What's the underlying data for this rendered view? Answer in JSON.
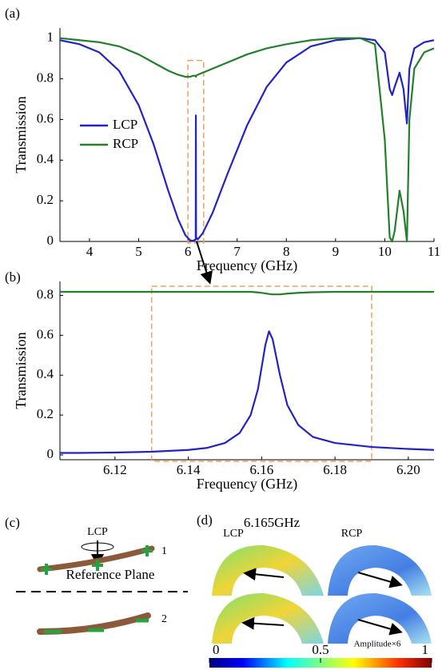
{
  "chart_data": [
    {
      "type": "line",
      "panel_label": "(a)",
      "xlabel": "Frequency (GHz)",
      "ylabel": "Transmission",
      "x": [
        3.4,
        3.8,
        4.2,
        4.6,
        5.0,
        5.3,
        5.6,
        5.8,
        5.95,
        6.05,
        6.1,
        6.158,
        6.162,
        6.166,
        6.2,
        6.3,
        6.5,
        6.8,
        7.2,
        7.6,
        8.0,
        8.5,
        9.0,
        9.5,
        9.8,
        10.0,
        10.1,
        10.15,
        10.2,
        10.3,
        10.38,
        10.45,
        10.5,
        10.6,
        10.8,
        11.0
      ],
      "series": [
        {
          "name": "LCP",
          "color": "#2323c4",
          "values": [
            0.99,
            0.97,
            0.93,
            0.84,
            0.67,
            0.48,
            0.25,
            0.11,
            0.03,
            0.005,
            0.003,
            0.01,
            0.62,
            0.02,
            0.01,
            0.04,
            0.14,
            0.33,
            0.57,
            0.76,
            0.88,
            0.96,
            0.99,
            1.0,
            0.99,
            0.93,
            0.75,
            0.72,
            0.76,
            0.83,
            0.75,
            0.58,
            0.85,
            0.95,
            0.98,
            0.99
          ]
        },
        {
          "name": "RCP",
          "color": "#22802a",
          "values": [
            1.0,
            0.99,
            0.98,
            0.96,
            0.92,
            0.88,
            0.84,
            0.82,
            0.81,
            0.81,
            0.815,
            0.815,
            0.81,
            0.815,
            0.82,
            0.83,
            0.85,
            0.88,
            0.92,
            0.95,
            0.97,
            0.99,
            1.0,
            1.0,
            0.97,
            0.5,
            0.02,
            0.0,
            0.05,
            0.25,
            0.15,
            0.0,
            0.6,
            0.85,
            0.93,
            0.95
          ]
        }
      ],
      "xlim": [
        3.4,
        11
      ],
      "ylim": [
        0,
        1.05
      ],
      "xticks": [
        4,
        5,
        6,
        7,
        8,
        9,
        10,
        11
      ],
      "yticks": [
        0,
        0.2,
        0.4,
        0.6,
        0.8,
        1
      ],
      "legend": "left",
      "highlight_x": [
        6.0,
        6.32
      ],
      "highlight_color": "#f0a060"
    },
    {
      "type": "line",
      "panel_label": "(b)",
      "xlabel": "Frequency (GHz)",
      "ylabel": "Transmission",
      "x": [
        6.105,
        6.11,
        6.12,
        6.13,
        6.14,
        6.145,
        6.15,
        6.154,
        6.157,
        6.159,
        6.161,
        6.162,
        6.163,
        6.165,
        6.167,
        6.17,
        6.174,
        6.18,
        6.19,
        6.2,
        6.207
      ],
      "series": [
        {
          "name": "LCP",
          "color": "#2323c4",
          "values": [
            0.01,
            0.01,
            0.012,
            0.016,
            0.025,
            0.035,
            0.06,
            0.11,
            0.2,
            0.33,
            0.55,
            0.62,
            0.58,
            0.4,
            0.25,
            0.15,
            0.09,
            0.06,
            0.04,
            0.03,
            0.025
          ]
        },
        {
          "name": "RCP",
          "color": "#22802a",
          "values": [
            0.818,
            0.818,
            0.818,
            0.818,
            0.818,
            0.818,
            0.818,
            0.818,
            0.818,
            0.815,
            0.81,
            0.807,
            0.805,
            0.805,
            0.809,
            0.813,
            0.816,
            0.818,
            0.818,
            0.818,
            0.818
          ]
        }
      ],
      "xlim": [
        6.105,
        6.207
      ],
      "ylim": [
        -0.024,
        0.87
      ],
      "xticks": [
        6.12,
        6.14,
        6.16,
        6.18,
        {
          "value": 6.2,
          "label": "6.20"
        }
      ],
      "yticks": [
        0,
        0.2,
        0.4,
        0.6,
        0.8
      ],
      "highlight_x": [
        6.13,
        6.19
      ],
      "highlight_color": "#f0a060"
    }
  ],
  "panel_c": {
    "label": "(c)",
    "incident": "LCP",
    "rod_1": "1",
    "plane": "Reference Plane",
    "rod_2": "2"
  },
  "panel_d": {
    "label": "(d)",
    "frequency": "6.165GHz",
    "left": "LCP",
    "right": "RCP",
    "note": "Amplitude×6",
    "colorbar": {
      "lim": [
        0,
        1
      ],
      "ticks": [
        0,
        0.5,
        1
      ]
    }
  }
}
